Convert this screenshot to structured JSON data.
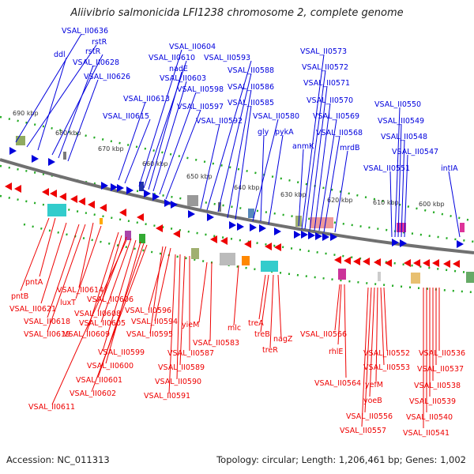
{
  "title": "Aliivibrio salmonicida LFI1238 chromosome 2, complete genome",
  "footer": {
    "accession": "Accession: NC_011313",
    "topology": "Topology: circular; Length: 1,206,461 bp; Genes: 1,002"
  },
  "colors": {
    "forward": "#0000dd",
    "reverse": "#dd0000",
    "backbone": "#808080",
    "ticks": "#22aa22"
  },
  "kbp_labels": [
    "690 kbp",
    "680 kbp",
    "670 kbp",
    "660 kbp",
    "650 kbp",
    "640 kbp",
    "630 kbp",
    "620 kbp",
    "610 kbp",
    "600 kbp"
  ],
  "forward_labels": [
    "VSAL_II0636",
    "rstR",
    "ddl",
    "rstR",
    "VSAL_II0628",
    "VSAL_II0626",
    "VSAL_II0604",
    "VSAL_II0610",
    "nadE",
    "VSAL_II0603",
    "VSAL_II0613",
    "VSAL_II0598",
    "VSAL_II0615",
    "VSAL_II0597",
    "VSAL_II0593",
    "VSAL_II0588",
    "VSAL_II0586",
    "VSAL_II0585",
    "VSAL_II0592",
    "VSAL_II0580",
    "gly",
    "pykA",
    "VSAL_II0573",
    "VSAL_II0572",
    "VSAL_II0571",
    "VSAL_II0570",
    "VSAL_II0569",
    "VSAL_II0568",
    "anmK",
    "mrdB",
    "VSAL_II0550",
    "VSAL_II0549",
    "VSAL_II0548",
    "VSAL_II0547",
    "VSAL_II0551",
    "intIA"
  ],
  "reverse_labels": [
    "pntA",
    "pntB",
    "VSAL_II0614",
    "VSAL_II0621",
    "luxT",
    "VSAL_II0618",
    "VSAL_II0606",
    "VSAL_II0619",
    "VSAL_II0608",
    "VSAL_II0605",
    "VSAL_II0609",
    "VSAL_II0596",
    "VSAL_II0594",
    "VSAL_II0595",
    "VSAL_II0599",
    "VSAL_II0600",
    "VSAL_II0601",
    "VSAL_II0602",
    "VSAL_II0611",
    "yieM",
    "mlc",
    "VSAL_II0583",
    "VSAL_II0587",
    "VSAL_II0589",
    "VSAL_II0590",
    "VSAL_II0591",
    "treA",
    "treB",
    "nagZ",
    "treR",
    "VSAL_II0566",
    "rhlE",
    "VSAL_II0564",
    "VSAL_II0552",
    "VSAL_II0553",
    "yefM",
    "yoeB",
    "VSAL_II0556",
    "VSAL_II0557",
    "VSAL_II0536",
    "VSAL_II0537",
    "VSAL_II0538",
    "VSAL_II0539",
    "VSAL_II0540",
    "VSAL_II0541"
  ]
}
